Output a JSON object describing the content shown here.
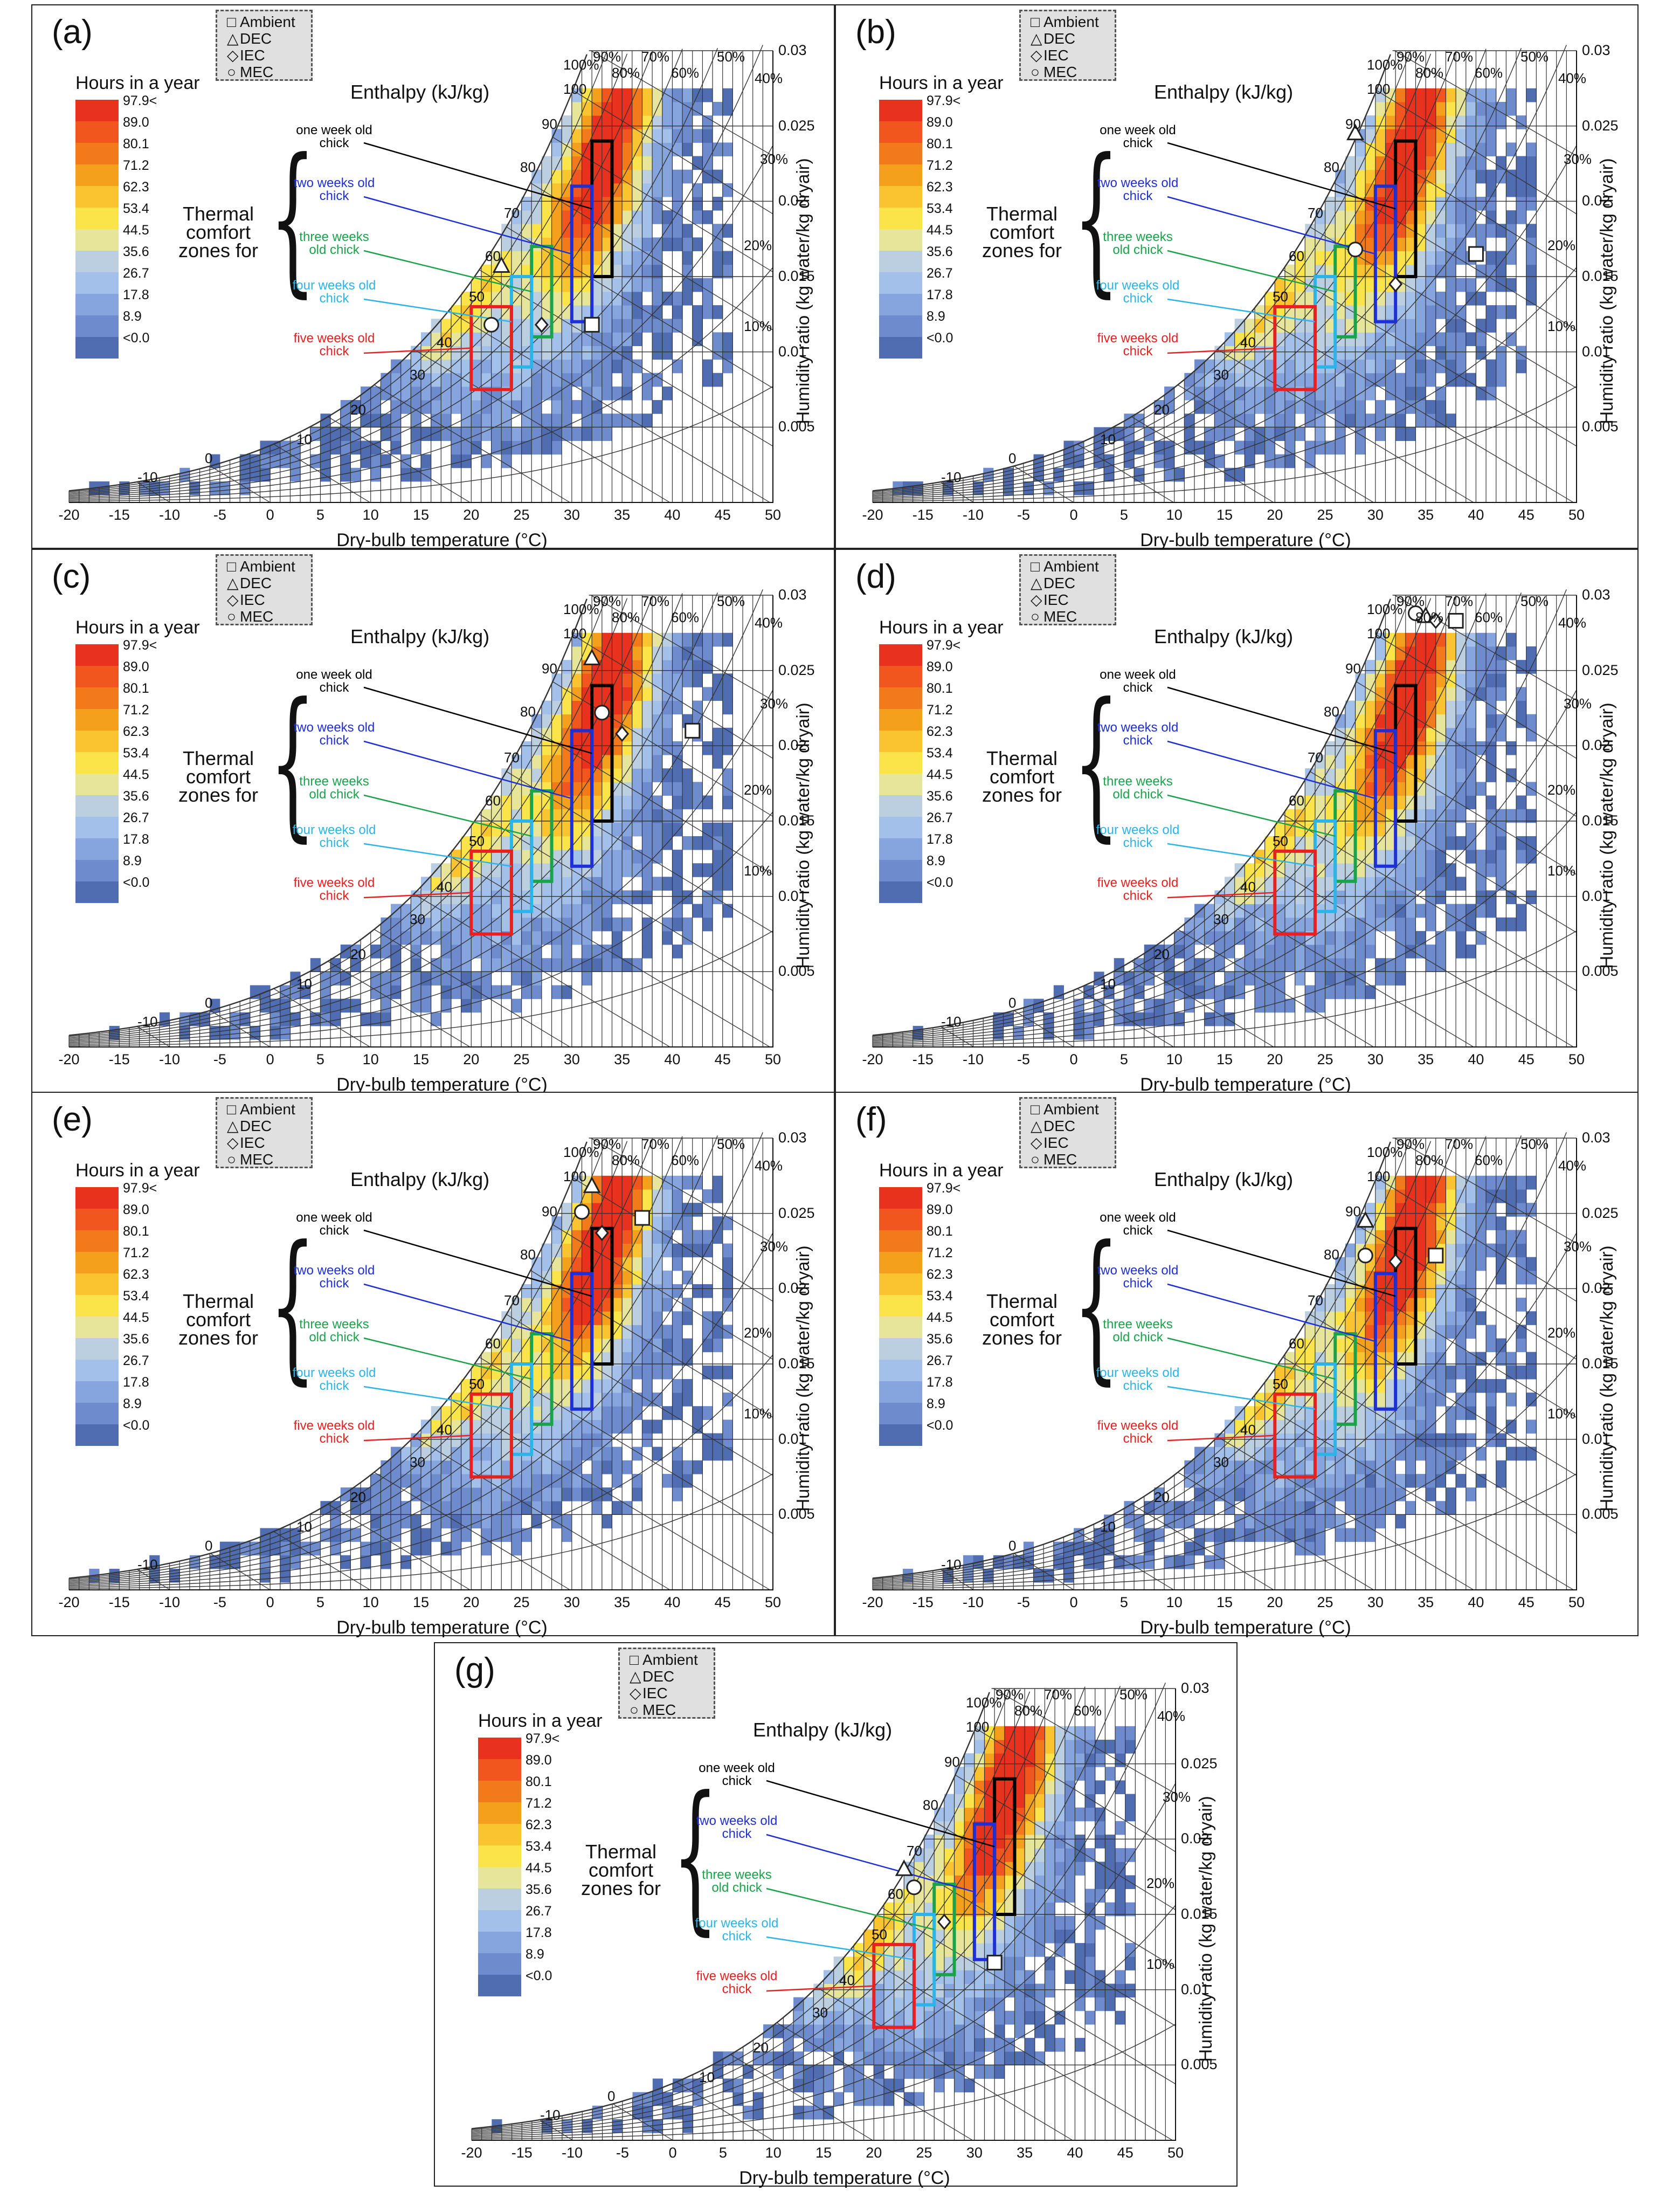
{
  "chart_data": {
    "type": "heatmap",
    "description_type": "psychrometric chart with hourly-occurrence heatmap",
    "xlabel": "Dry-bulb temperature (°C)",
    "ylabel": "Humidity ratio (kg water/kg dryair)",
    "xlim": [
      -20,
      50
    ],
    "ylim": [
      0,
      0.03
    ],
    "x_ticks": [
      "-20",
      "-15",
      "-10",
      "-5",
      "0",
      "5",
      "10",
      "15",
      "20",
      "25",
      "30",
      "35",
      "40",
      "45",
      "50"
    ],
    "y_ticks": [
      "0.03",
      "0.025",
      "0.02",
      "0.015",
      "0.01",
      "0.005"
    ],
    "rh_labels": [
      "100%",
      "90%",
      "80%",
      "70%",
      "60%",
      "50%",
      "40%",
      "30%",
      "20%",
      "10%"
    ],
    "enthalpy_title": "Enthalpy (kJ/kg)",
    "enthalpy_labels": [
      "100",
      "90",
      "80",
      "70",
      "60",
      "50",
      "40",
      "30",
      "20",
      "10",
      "0",
      "-10"
    ],
    "colorbar": {
      "title": "Hours in a year",
      "labels": [
        "97.9<",
        "89.0",
        "80.1",
        "71.2",
        "62.3",
        "53.4",
        "44.5",
        "35.6",
        "26.7",
        "17.8",
        "8.9",
        "<0.0"
      ],
      "colors": [
        "#e8321e",
        "#f0561d",
        "#f37a1a",
        "#f5a01c",
        "#f9c430",
        "#fbe34a",
        "#e7e59a",
        "#bccfe0",
        "#a3c0ea",
        "#86a4de",
        "#6e8ccd",
        "#4f6db0"
      ]
    },
    "legend": [
      "Ambient",
      "DEC",
      "IEC",
      "MEC"
    ],
    "comfort_label": "Thermal comfort zones for",
    "zones": [
      {
        "label": "one week old chick",
        "color": "#000000",
        "t": [
          32,
          34
        ],
        "w": [
          0.015,
          0.024
        ]
      },
      {
        "label": "two weeks old chick",
        "color": "#1f2fd6",
        "t": [
          30,
          32
        ],
        "w": [
          0.012,
          0.021
        ]
      },
      {
        "label": "three weeks old chick",
        "color": "#1aa34a",
        "t": [
          26,
          28
        ],
        "w": [
          0.011,
          0.017
        ]
      },
      {
        "label": "four weeks old chick",
        "color": "#2ab4e8",
        "t": [
          24,
          26
        ],
        "w": [
          0.009,
          0.015
        ]
      },
      {
        "label": "five weeks old chick",
        "color": "#e82020",
        "t": [
          20,
          24
        ],
        "w": [
          0.0075,
          0.013
        ]
      }
    ],
    "panels": [
      {
        "label": "(a)",
        "points": {
          "ambient": [
            32,
            0.0118
          ],
          "dec": [
            23,
            0.0157
          ],
          "iec": [
            27,
            0.0118
          ],
          "mec": [
            22,
            0.0118
          ]
        }
      },
      {
        "label": "(b)",
        "points": {
          "ambient": [
            40,
            0.0165
          ],
          "dec": [
            28,
            0.0245
          ],
          "iec": [
            32,
            0.0145
          ],
          "mec": [
            28,
            0.0168
          ]
        }
      },
      {
        "label": "(c)",
        "points": {
          "ambient": [
            42,
            0.021
          ],
          "dec": [
            32,
            0.0258
          ],
          "iec": [
            35,
            0.0208
          ],
          "mec": [
            33,
            0.0222
          ]
        }
      },
      {
        "label": "(d)",
        "points": {
          "ambient": [
            38,
            0.0283
          ],
          "dec": [
            35,
            0.0286
          ],
          "iec": [
            36,
            0.0283
          ],
          "mec": [
            34,
            0.0288
          ]
        }
      },
      {
        "label": "(e)",
        "points": {
          "ambient": [
            37,
            0.0247
          ],
          "dec": [
            32,
            0.0268
          ],
          "iec": [
            33,
            0.0237
          ],
          "mec": [
            31,
            0.0251
          ]
        }
      },
      {
        "label": "(f)",
        "points": {
          "ambient": [
            36,
            0.0222
          ],
          "dec": [
            29,
            0.0245
          ],
          "iec": [
            32,
            0.0218
          ],
          "mec": [
            29,
            0.0222
          ]
        }
      },
      {
        "label": "(g)",
        "points": {
          "ambient": [
            32,
            0.0118
          ],
          "dec": [
            23,
            0.018
          ],
          "iec": [
            27,
            0.0145
          ],
          "mec": [
            24,
            0.0168
          ]
        }
      }
    ]
  }
}
